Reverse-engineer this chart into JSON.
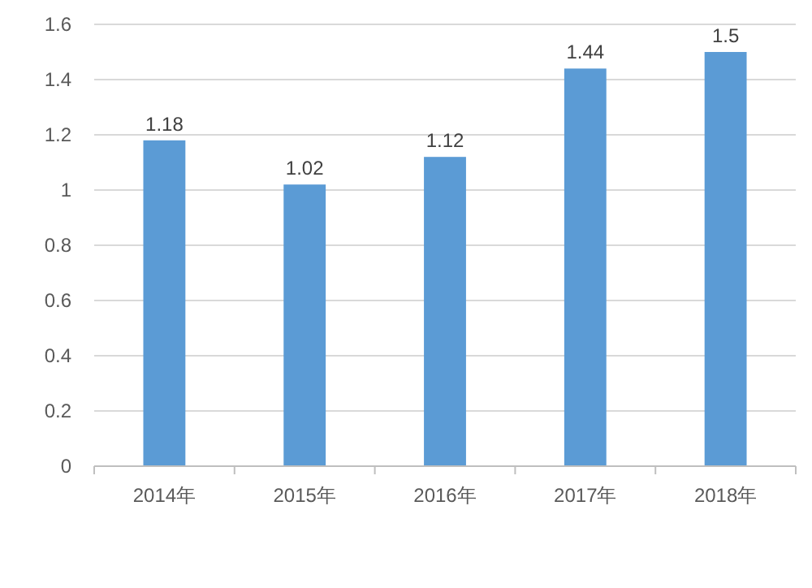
{
  "chart_data": {
    "type": "bar",
    "categories": [
      "2014年",
      "2015年",
      "2016年",
      "2017年",
      "2018年"
    ],
    "values": [
      1.18,
      1.02,
      1.12,
      1.44,
      1.5
    ],
    "color": "#5b9bd5",
    "ylim": [
      0,
      1.6
    ],
    "yticks": [
      0,
      0.2,
      0.4,
      0.6,
      0.8,
      1,
      1.2,
      1.4,
      1.6
    ],
    "grid": "y",
    "data_labels": true
  }
}
